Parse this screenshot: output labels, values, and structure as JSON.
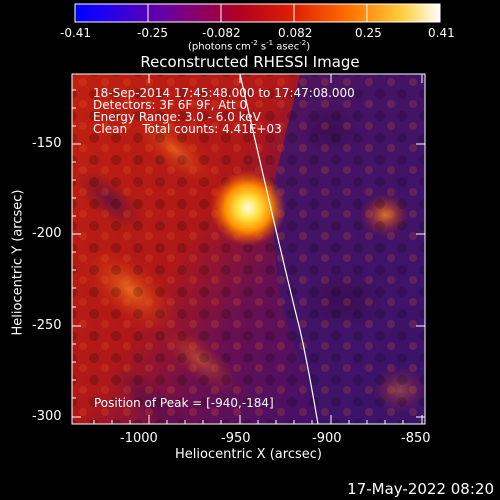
{
  "colorbar": {
    "tick_labels": [
      "-0.41",
      "-0.25",
      "-0.082",
      "0.082",
      "0.25",
      "0.41"
    ],
    "units_prefix": "(photons cm",
    "units_exp1": "-2",
    "units_mid": " s",
    "units_exp2": "-1",
    "units_mid2": " asec",
    "units_exp3": "-2",
    "units_suffix": ")"
  },
  "plot": {
    "title": "Reconstructed RHESSI Image",
    "xlabel": "Heliocentric X (arcsec)",
    "ylabel": "Heliocentric Y (arcsec)",
    "x_ticks": [
      "-1000",
      "-950",
      "-900",
      "-850"
    ],
    "y_ticks": [
      "-150",
      "-200",
      "-250",
      "-300"
    ],
    "info_lines": [
      "18-Sep-2014 17:45:48.000 to 17:47:08.000",
      "Detectors: 3F 6F 9F, Att 0",
      "Energy Range: 3.0 - 6.0 keV",
      "Clean    Total counts: 4.41E+03"
    ],
    "peak_text": "Position of Peak = [-940,-184]"
  },
  "footer": {
    "timestamp": "17-May-2022 08:20"
  }
}
